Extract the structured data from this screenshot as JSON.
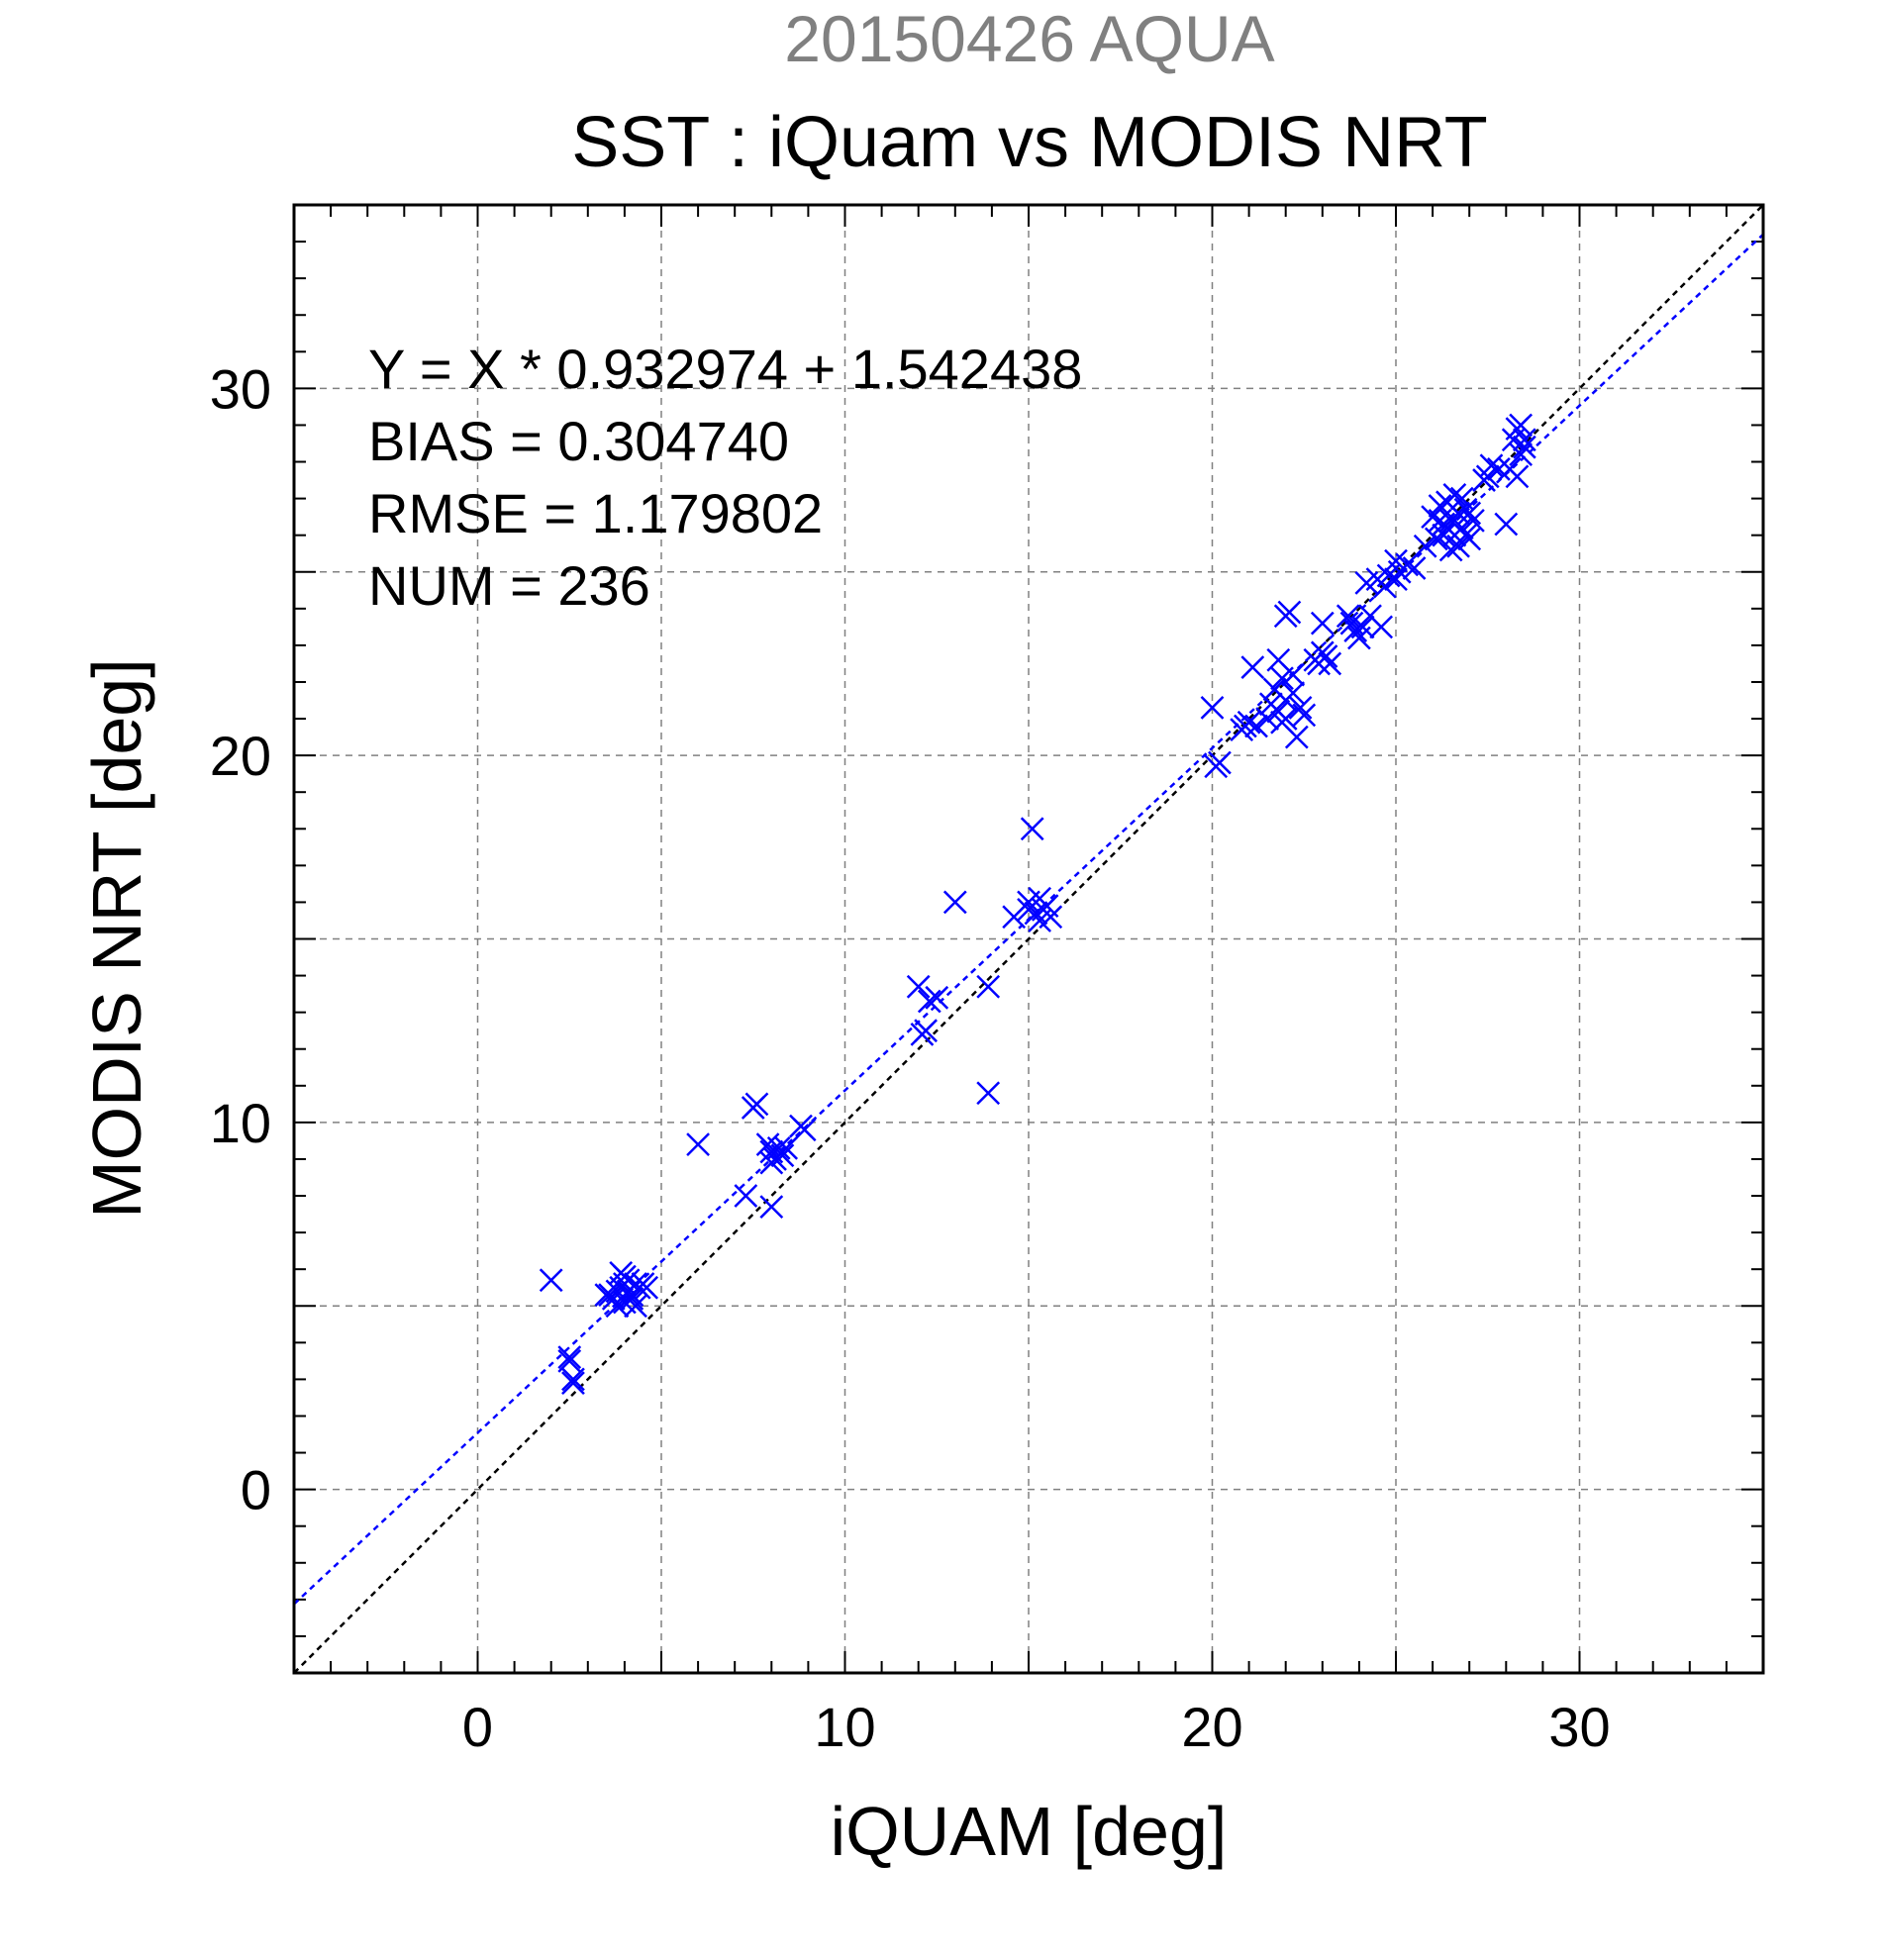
{
  "chart_data": {
    "type": "scatter",
    "title": "SST : iQuam vs MODIS NRT",
    "subtitle": "20150426 AQUA",
    "xlabel": "iQUAM [deg]",
    "ylabel": "MODIS NRT [deg]",
    "xlim": [
      -5,
      35
    ],
    "ylim": [
      -5,
      35
    ],
    "xticks": [
      "0",
      "10",
      "20",
      "30"
    ],
    "yticks": [
      "0",
      "10",
      "20",
      "30"
    ],
    "grid": true,
    "stats": [
      "Y = X * 0.932974 + 1.542438",
      "BIAS = 0.304740",
      "RMSE = 1.179802",
      "NUM = 236"
    ],
    "fit": {
      "slope": 0.932974,
      "intercept": 1.542438
    },
    "reference_line": {
      "slope": 1,
      "intercept": 0
    },
    "colors": {
      "points": "#0000ff",
      "fit_line": "#0000ff",
      "reference_line": "#000000",
      "grid": "#808080",
      "subtitle": "#808080"
    },
    "points": [
      [
        2.0,
        5.7
      ],
      [
        2.5,
        3.6
      ],
      [
        2.5,
        3.5
      ],
      [
        2.6,
        2.9
      ],
      [
        2.6,
        3.0
      ],
      [
        3.6,
        5.3
      ],
      [
        3.7,
        5.2
      ],
      [
        3.8,
        5.4
      ],
      [
        3.9,
        5.5
      ],
      [
        4.0,
        5.6
      ],
      [
        4.0,
        5.1
      ],
      [
        4.1,
        5.4
      ],
      [
        4.2,
        5.3
      ],
      [
        4.3,
        5.6
      ],
      [
        4.4,
        5.5
      ],
      [
        4.5,
        5.6
      ],
      [
        3.5,
        5.3
      ],
      [
        4.0,
        5.8
      ],
      [
        4.2,
        5.2
      ],
      [
        3.9,
        5.9
      ],
      [
        4.6,
        5.5
      ],
      [
        4.3,
        5.0
      ],
      [
        3.8,
        5.0
      ],
      [
        4.1,
        5.7
      ],
      [
        6.0,
        9.4
      ],
      [
        7.3,
        8.0
      ],
      [
        7.5,
        10.4
      ],
      [
        7.6,
        10.5
      ],
      [
        8.0,
        7.7
      ],
      [
        8.0,
        9.2
      ],
      [
        8.1,
        9.0
      ],
      [
        8.2,
        9.3
      ],
      [
        8.3,
        9.1
      ],
      [
        8.4,
        9.3
      ],
      [
        7.9,
        9.4
      ],
      [
        8.9,
        9.8
      ],
      [
        8.8,
        9.9
      ],
      [
        8.0,
        8.9
      ],
      [
        12.0,
        13.7
      ],
      [
        12.1,
        12.4
      ],
      [
        12.2,
        12.5
      ],
      [
        12.3,
        13.3
      ],
      [
        12.5,
        13.4
      ],
      [
        13.0,
        16.0
      ],
      [
        13.9,
        13.7
      ],
      [
        13.9,
        10.8
      ],
      [
        14.6,
        15.6
      ],
      [
        15.0,
        16.0
      ],
      [
        15.1,
        18.0
      ],
      [
        15.2,
        15.7
      ],
      [
        15.3,
        16.1
      ],
      [
        15.4,
        15.8
      ],
      [
        15.5,
        15.9
      ],
      [
        15.6,
        15.6
      ],
      [
        15.0,
        15.8
      ],
      [
        15.3,
        15.5
      ],
      [
        20.0,
        21.3
      ],
      [
        20.1,
        19.7
      ],
      [
        20.2,
        19.8
      ],
      [
        20.8,
        20.7
      ],
      [
        20.9,
        20.8
      ],
      [
        21.0,
        20.9
      ],
      [
        21.1,
        22.4
      ],
      [
        21.2,
        20.8
      ],
      [
        21.5,
        21.0
      ],
      [
        21.6,
        21.4
      ],
      [
        21.7,
        21.8
      ],
      [
        21.8,
        21.2
      ],
      [
        21.9,
        22.1
      ],
      [
        22.0,
        21.0
      ],
      [
        22.1,
        23.9
      ],
      [
        22.0,
        23.8
      ],
      [
        22.2,
        21.7
      ],
      [
        22.3,
        20.5
      ],
      [
        22.4,
        21.3
      ],
      [
        22.2,
        22.2
      ],
      [
        21.8,
        22.6
      ],
      [
        22.5,
        21.1
      ],
      [
        21.9,
        20.9
      ],
      [
        22.0,
        21.5
      ],
      [
        22.8,
        22.6
      ],
      [
        22.9,
        22.5
      ],
      [
        23.0,
        23.6
      ],
      [
        23.1,
        22.7
      ],
      [
        23.2,
        22.5
      ],
      [
        23.0,
        22.8
      ],
      [
        23.7,
        23.8
      ],
      [
        23.8,
        23.6
      ],
      [
        23.9,
        23.4
      ],
      [
        24.0,
        23.2
      ],
      [
        24.1,
        23.5
      ],
      [
        24.2,
        24.7
      ],
      [
        24.3,
        23.8
      ],
      [
        24.5,
        24.8
      ],
      [
        24.6,
        23.5
      ],
      [
        24.7,
        24.6
      ],
      [
        24.8,
        24.9
      ],
      [
        25.0,
        25.3
      ],
      [
        25.1,
        25.0
      ],
      [
        25.3,
        25.2
      ],
      [
        25.5,
        25.1
      ],
      [
        25.0,
        24.8
      ],
      [
        25.8,
        25.7
      ],
      [
        26.0,
        26.5
      ],
      [
        26.1,
        25.9
      ],
      [
        26.2,
        26.8
      ],
      [
        26.3,
        26.3
      ],
      [
        26.4,
        26.9
      ],
      [
        26.5,
        26.4
      ],
      [
        26.6,
        26.0
      ],
      [
        26.7,
        26.6
      ],
      [
        26.8,
        26.2
      ],
      [
        26.9,
        26.7
      ],
      [
        27.0,
        25.9
      ],
      [
        27.1,
        26.4
      ],
      [
        26.5,
        25.6
      ],
      [
        26.6,
        27.1
      ],
      [
        26.7,
        25.7
      ],
      [
        26.3,
        26.0
      ],
      [
        26.8,
        27.0
      ],
      [
        27.0,
        26.6
      ],
      [
        26.4,
        26.2
      ],
      [
        26.9,
        26.0
      ],
      [
        26.2,
        26.4
      ],
      [
        27.4,
        27.5
      ],
      [
        27.5,
        27.6
      ],
      [
        27.6,
        27.9
      ],
      [
        27.8,
        27.8
      ],
      [
        28.0,
        26.3
      ],
      [
        28.1,
        27.8
      ],
      [
        28.2,
        28.6
      ],
      [
        28.3,
        28.9
      ],
      [
        28.4,
        29.0
      ],
      [
        28.5,
        28.4
      ],
      [
        28.3,
        27.6
      ],
      [
        28.4,
        28.2
      ],
      [
        28.5,
        28.6
      ]
    ]
  }
}
